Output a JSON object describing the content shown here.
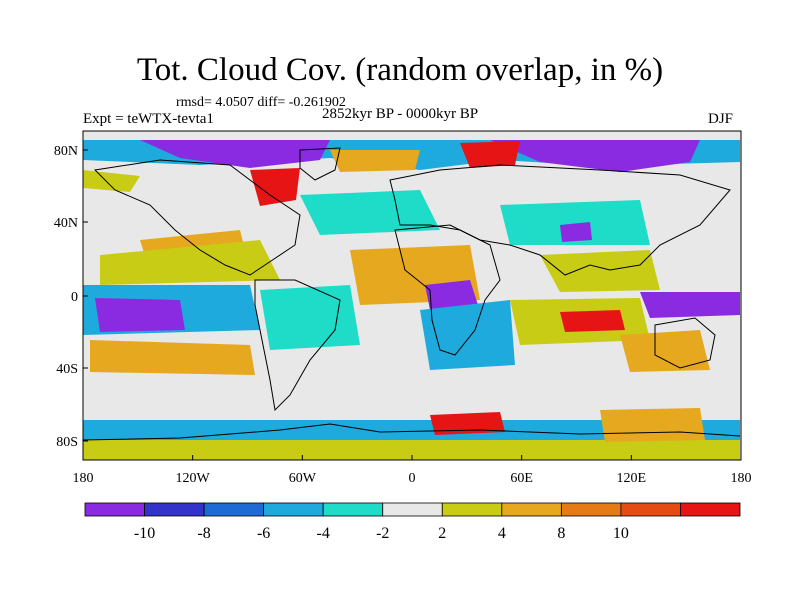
{
  "title": "Tot. Cloud Cov. (random overlap, in %)",
  "stats_text": "rmsd= 4.0507 diff= -0.261902",
  "experiment_label": "Expt = teWTX-tevta1",
  "period_label": "2852kyr BP - 0000kyr BP",
  "season_label": "DJF",
  "x_tick_labels": [
    "180",
    "120W",
    "60W",
    "0",
    "60E",
    "120E",
    "180"
  ],
  "y_tick_labels": [
    "80N",
    "40N",
    "0",
    "40S",
    "80S"
  ],
  "colorbar": {
    "labels": [
      "-10",
      "-8",
      "-6",
      "-4",
      "-2",
      "2",
      "4",
      "8",
      "10"
    ],
    "colors": [
      "#8a2be2",
      "#3333cc",
      "#1e6bd6",
      "#1eaadc",
      "#1edcc8",
      "#e8e8e8",
      "#c8cc14",
      "#e6a81e",
      "#e67a14",
      "#e64b14",
      "#e61414"
    ]
  },
  "map_colors": {
    "background": "#e8e8e8",
    "violet": "#8a2be2",
    "blue": "#3333cc",
    "mid_blue": "#1e6bd6",
    "cyan": "#1eaadc",
    "teal": "#1edcc8",
    "yellow": "#c8cc14",
    "orange": "#e6a81e",
    "dark_orange": "#e67a14",
    "red": "#e61414"
  }
}
